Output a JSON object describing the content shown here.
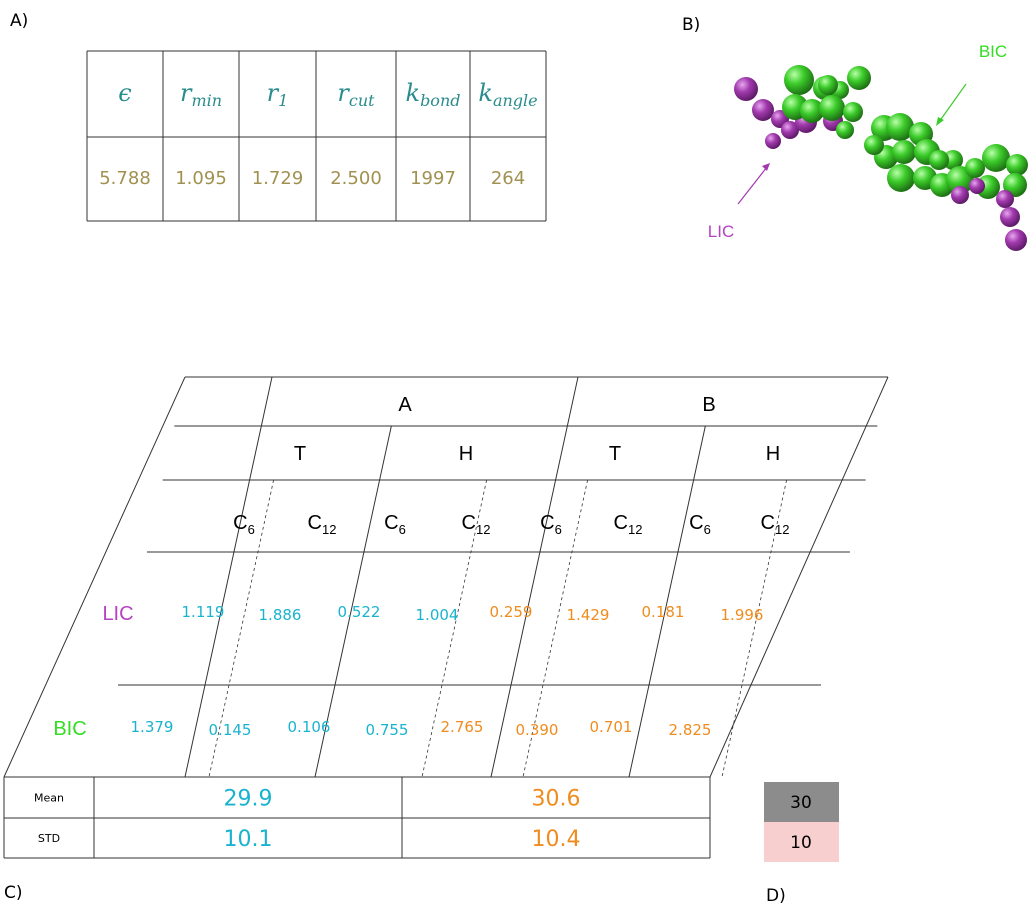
{
  "panels": {
    "a": "A)",
    "b": "B)",
    "c": "C)",
    "d": "D)"
  },
  "colors": {
    "symbol": "#2a8c8c",
    "param_value": "#a09150",
    "cyan": "#1ab3cf",
    "orange": "#f08c1e",
    "purple": "#b542c1",
    "green": "#33dd22",
    "blue": "#1e2ee6",
    "red": "#e01818",
    "legend_gray": "#8c8c8c",
    "legend_pink": "#f7cfcf"
  },
  "param_table": {
    "headers": [
      {
        "base": "ϵ",
        "sub": ""
      },
      {
        "base": "r",
        "sub": "min"
      },
      {
        "base": "r",
        "sub": "1"
      },
      {
        "base": "r",
        "sub": "cut"
      },
      {
        "base": "k",
        "sub": "bond"
      },
      {
        "base": "k",
        "sub": "angle"
      }
    ],
    "values": [
      "5.788",
      "1.095",
      "1.729",
      "2.500",
      "1997",
      "264"
    ]
  },
  "molecule": {
    "labels": {
      "bic": "BIC",
      "lic": "LIC"
    },
    "colors": {
      "bic": "#3ccc2a",
      "lic": "#a23aae"
    }
  },
  "grid": {
    "group_labels": [
      "A",
      "B"
    ],
    "sub_labels": [
      "T",
      "H",
      "T",
      "H"
    ],
    "coef_labels": [
      {
        "base": "C",
        "sub": "6"
      },
      {
        "base": "C",
        "sub": "12"
      },
      {
        "base": "C",
        "sub": "6"
      },
      {
        "base": "C",
        "sub": "12"
      },
      {
        "base": "C",
        "sub": "6"
      },
      {
        "base": "C",
        "sub": "12"
      },
      {
        "base": "C",
        "sub": "6"
      },
      {
        "base": "C",
        "sub": "12"
      }
    ],
    "rows": [
      {
        "label": "LIC",
        "values": [
          "1.119",
          "1.886",
          "0.522",
          "1.004",
          "0.259",
          "1.429",
          "0.181",
          "1.996"
        ]
      },
      {
        "label": "BIC",
        "values": [
          "1.379",
          "0.145",
          "0.106",
          "0.755",
          "2.765",
          "0.390",
          "0.701",
          "2.825"
        ]
      }
    ]
  },
  "stats": [
    {
      "label": "Mean",
      "a": "29.9",
      "b": "30.6"
    },
    {
      "label": "STD",
      "a": "10.1",
      "b": "10.4"
    }
  ],
  "legend": [
    "30",
    "10"
  ]
}
